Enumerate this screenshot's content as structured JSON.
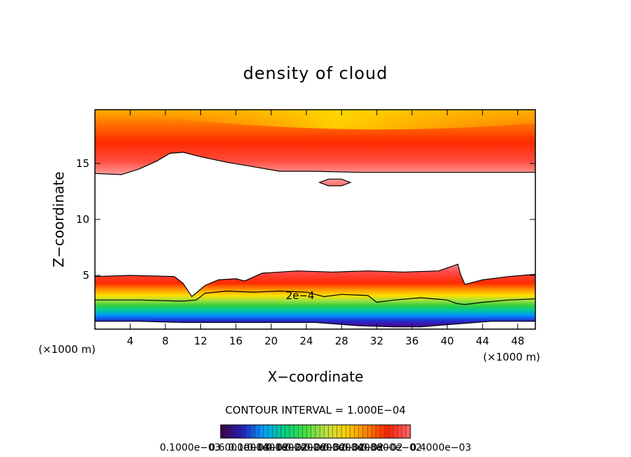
{
  "chart_data": {
    "type": "heatmap",
    "title": "density of cloud",
    "xlabel": "X−coordinate",
    "ylabel": "Z−coordinate",
    "x_unit_left": "(×1000 m)",
    "x_unit_right": "(×1000 m)",
    "xlim": [
      0,
      50
    ],
    "ylim": [
      0.2,
      19.8
    ],
    "xticks": [
      4,
      8,
      12,
      16,
      20,
      24,
      28,
      32,
      36,
      40,
      44,
      48
    ],
    "yticks": [
      5,
      10,
      15
    ],
    "contour_interval_text": "CONTOUR INTERVAL = 1.000E−04",
    "contour_label": "2e−4",
    "colorbar_labels": [
      "0.1000e−03",
      "0.6000e−03",
      "0.1000e−02",
      "0.1400e−02",
      "0.1800e−02",
      "0.2200e−02",
      "0.2600e−02",
      "0.3000e−02",
      "0.3400e−02",
      "0.3800e−02",
      "0.4000e−03"
    ],
    "colorbar_stops": [
      "#3a0050",
      "#2020c0",
      "#00a0ff",
      "#00d080",
      "#40e040",
      "#c0e040",
      "#ffd000",
      "#ff8000",
      "#ff2000",
      "#ff6060"
    ],
    "colorbar_segments": 44,
    "series": [
      {
        "name": "upper cloud layer base",
        "values": [
          [
            0,
            14.1
          ],
          [
            3,
            14.0
          ],
          [
            5,
            14.5
          ],
          [
            7,
            15.2
          ],
          [
            8.5,
            15.9
          ],
          [
            10,
            16.0
          ],
          [
            12,
            15.6
          ],
          [
            15,
            15.1
          ],
          [
            18,
            14.7
          ],
          [
            21,
            14.3
          ],
          [
            25,
            14.3
          ],
          [
            30,
            14.2
          ],
          [
            35,
            14.2
          ],
          [
            40,
            14.2
          ],
          [
            45,
            14.2
          ],
          [
            50,
            14.2
          ]
        ]
      },
      {
        "name": "isolated cloud near 27 km",
        "values": [
          [
            25.5,
            13.3
          ],
          [
            26.5,
            13.6
          ],
          [
            28.0,
            13.6
          ],
          [
            29.0,
            13.3
          ],
          [
            28.0,
            13.0
          ],
          [
            26.5,
            13.0
          ]
        ]
      },
      {
        "name": "lower cloud layer top",
        "values": [
          [
            0,
            4.9
          ],
          [
            4,
            5.0
          ],
          [
            9,
            4.9
          ],
          [
            10,
            4.3
          ],
          [
            11,
            3.1
          ],
          [
            12.5,
            4.1
          ],
          [
            14,
            4.6
          ],
          [
            16,
            4.7
          ],
          [
            17,
            4.5
          ],
          [
            19,
            5.2
          ],
          [
            23,
            5.4
          ],
          [
            27,
            5.3
          ],
          [
            31,
            5.4
          ],
          [
            35,
            5.3
          ],
          [
            39,
            5.4
          ],
          [
            40.5,
            5.8
          ],
          [
            41.2,
            6.0
          ],
          [
            41.5,
            5.1
          ],
          [
            42,
            4.2
          ],
          [
            44,
            4.6
          ],
          [
            47,
            4.9
          ],
          [
            50,
            5.1
          ]
        ]
      },
      {
        "name": "2e-4 contour",
        "values": [
          [
            0,
            2.8
          ],
          [
            5,
            2.8
          ],
          [
            10,
            2.7
          ],
          [
            11.5,
            2.8
          ],
          [
            12.5,
            3.4
          ],
          [
            15,
            3.6
          ],
          [
            18,
            3.5
          ],
          [
            21,
            3.6
          ],
          [
            24,
            3.5
          ],
          [
            26,
            3.1
          ],
          [
            28,
            3.3
          ],
          [
            31,
            3.2
          ],
          [
            32,
            2.6
          ],
          [
            34,
            2.8
          ],
          [
            37,
            3.0
          ],
          [
            40,
            2.8
          ],
          [
            41,
            2.5
          ],
          [
            42,
            2.4
          ],
          [
            44,
            2.6
          ],
          [
            47,
            2.8
          ],
          [
            50,
            2.9
          ]
        ]
      },
      {
        "name": "lower cloud base",
        "values": [
          [
            0,
            0.9
          ],
          [
            5,
            0.9
          ],
          [
            10,
            0.8
          ],
          [
            15,
            0.8
          ],
          [
            20,
            0.8
          ],
          [
            25,
            0.8
          ],
          [
            30,
            0.5
          ],
          [
            34,
            0.4
          ],
          [
            37,
            0.4
          ],
          [
            40,
            0.6
          ],
          [
            45,
            0.9
          ],
          [
            50,
            0.9
          ]
        ]
      }
    ]
  }
}
